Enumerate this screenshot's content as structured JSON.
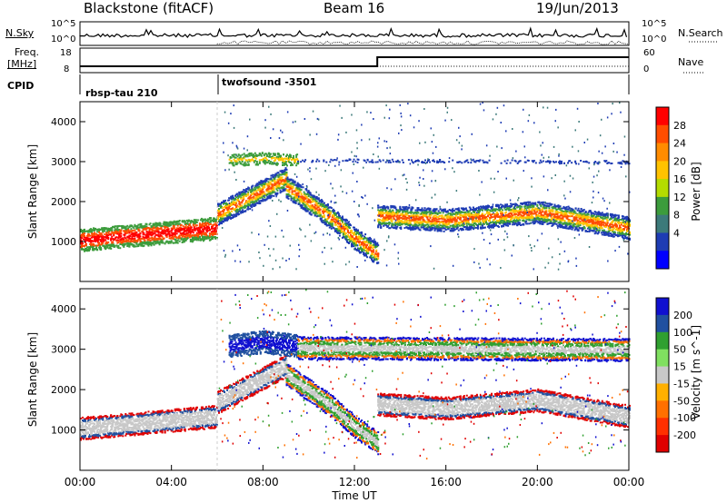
{
  "header": {
    "station": "Blackstone (fitACF)",
    "beam": "Beam 16",
    "date": "19/Jun/2013"
  },
  "top_panels": {
    "nsky_label": "N.Sky",
    "nsearch_label": "N.Search",
    "freq_label_1": "Freq.",
    "freq_label_2": "[MHz]",
    "nave_label": "Nave",
    "cpid_label": "CPID",
    "nsky_ticks": [
      "10^5",
      "10^0"
    ],
    "nsearch_ticks": [
      "10^5",
      "10^0"
    ],
    "freq_ticks": [
      "18",
      "8"
    ],
    "nave_ticks": [
      "60",
      "0"
    ],
    "cpid_segments": [
      {
        "label": "rbsp-tau 210",
        "start_hour": 0,
        "end_hour": 6
      },
      {
        "label": "twofsound -3501",
        "start_hour": 6,
        "end_hour": 24
      }
    ]
  },
  "time_axis": {
    "label": "Time UT",
    "ticks": [
      "00:00",
      "04:00",
      "08:00",
      "12:00",
      "16:00",
      "20:00",
      "00:00"
    ]
  },
  "power_colorbar": {
    "label": "Power [dB]",
    "ticks": [
      "28",
      "24",
      "20",
      "16",
      "12",
      "8",
      "4"
    ],
    "colors": [
      "#ff0000",
      "#ff4d00",
      "#ff8c00",
      "#ffc300",
      "#b4dc00",
      "#3c9c3c",
      "#3c7a7a",
      "#1e3cb4",
      "#0000ff"
    ]
  },
  "velocity_colorbar": {
    "label": "Velocity [m s^-1]",
    "ticks": [
      "200",
      "100",
      "50",
      "15",
      "-15",
      "-50",
      "-100",
      "-200"
    ],
    "colors": [
      "#1010d0",
      "#2050a0",
      "#30a030",
      "#80e060",
      "#c8c8c8",
      "#ffb000",
      "#ff7000",
      "#ff3000",
      "#e00000"
    ]
  },
  "chart_data": [
    {
      "type": "heatmap",
      "panel": "power",
      "ylabel": "Slant Range [km]",
      "xlabel": "Time UT",
      "xlim": [
        0,
        24
      ],
      "ylim": [
        0,
        4500
      ],
      "yticks": [
        "4000",
        "3000",
        "2000",
        "1000"
      ],
      "bands": [
        {
          "times": [
            0,
            2,
            4,
            6
          ],
          "ranges": [
            1050,
            1150,
            1250,
            1350
          ],
          "color_key": "strong"
        },
        {
          "times": [
            6,
            7,
            8,
            9
          ],
          "ranges": [
            1700,
            2000,
            2300,
            2600
          ],
          "color_key": "medium"
        },
        {
          "times": [
            9,
            10,
            11,
            12,
            13
          ],
          "ranges": [
            2400,
            2000,
            1600,
            1100,
            700
          ],
          "color_key": "medium"
        },
        {
          "times": [
            13,
            16,
            18,
            20,
            22,
            24
          ],
          "ranges": [
            1650,
            1550,
            1650,
            1750,
            1550,
            1350
          ],
          "color_key": "medium"
        },
        {
          "times": [
            6.5,
            8,
            9.5
          ],
          "ranges": [
            3050,
            3100,
            3050
          ],
          "color_key": "weak"
        },
        {
          "times": [
            9.5,
            24
          ],
          "ranges": [
            3050,
            3000
          ],
          "color_key": "faint"
        }
      ]
    },
    {
      "type": "heatmap",
      "panel": "velocity",
      "ylabel": "Slant Range [km]",
      "xlabel": "Time UT",
      "xlim": [
        0,
        24
      ],
      "ylim": [
        0,
        4500
      ],
      "yticks": [
        "4000",
        "3000",
        "2000",
        "1000"
      ],
      "bands": [
        {
          "times": [
            0,
            2,
            4,
            6
          ],
          "ranges": [
            1050,
            1150,
            1250,
            1350
          ],
          "color_key": "ground"
        },
        {
          "times": [
            6,
            7,
            8,
            9
          ],
          "ranges": [
            1700,
            2000,
            2300,
            2600
          ],
          "color_key": "ground"
        },
        {
          "times": [
            9,
            10,
            11,
            12,
            13
          ],
          "ranges": [
            2400,
            2000,
            1600,
            1100,
            700
          ],
          "color_key": "mixed"
        },
        {
          "times": [
            13,
            16,
            18,
            20,
            22,
            24
          ],
          "ranges": [
            1650,
            1550,
            1650,
            1750,
            1550,
            1350
          ],
          "color_key": "ground"
        },
        {
          "times": [
            6.5,
            8,
            9.5
          ],
          "ranges": [
            3100,
            3200,
            3100
          ],
          "color_key": "positive"
        },
        {
          "times": [
            9.5,
            24
          ],
          "ranges": [
            3050,
            3000
          ],
          "color_key": "mixed"
        }
      ]
    }
  ]
}
